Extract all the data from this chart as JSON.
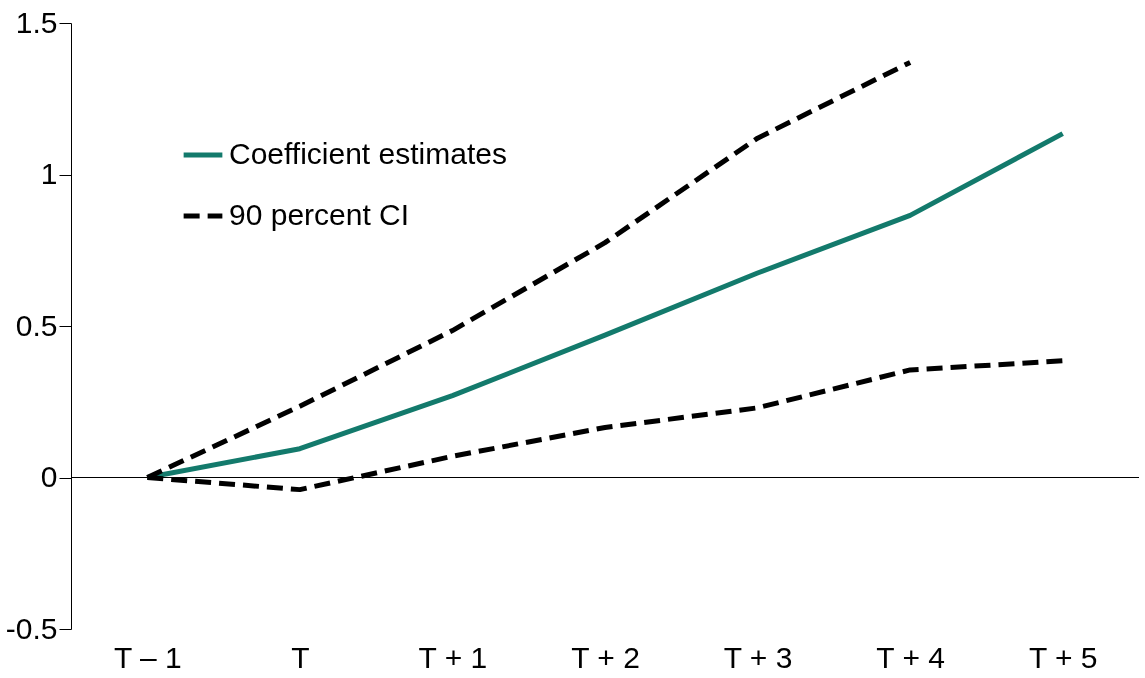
{
  "chart_data": {
    "type": "line",
    "categories": [
      "T – 1",
      "T",
      "T + 1",
      "T + 2",
      "T + 3",
      "T + 4",
      "T + 5"
    ],
    "ylim": [
      -0.5,
      1.5
    ],
    "yticks": [
      -0.5,
      0,
      0.5,
      1,
      1.5
    ],
    "series": [
      {
        "name": "Coefficient estimates",
        "color": "#137a6c",
        "line_style": "solid",
        "values": [
          0,
          0.095,
          0.27,
          0.47,
          0.675,
          0.865,
          1.135
        ]
      },
      {
        "name": "90 percent CI",
        "color": "#000000",
        "line_style": "dashed",
        "values": [
          0,
          0.235,
          0.485,
          0.775,
          1.12,
          1.37,
          null
        ]
      },
      {
        "color": "#000000",
        "line_style": "dashed",
        "values": [
          0,
          -0.04,
          0.07,
          0.165,
          0.23,
          0.355,
          0.385
        ]
      }
    ],
    "ref_lines": [
      {
        "axis": "y",
        "value": 0,
        "color": "#000000",
        "line_style": "solid"
      }
    ],
    "legend": "top left",
    "grid": false
  }
}
